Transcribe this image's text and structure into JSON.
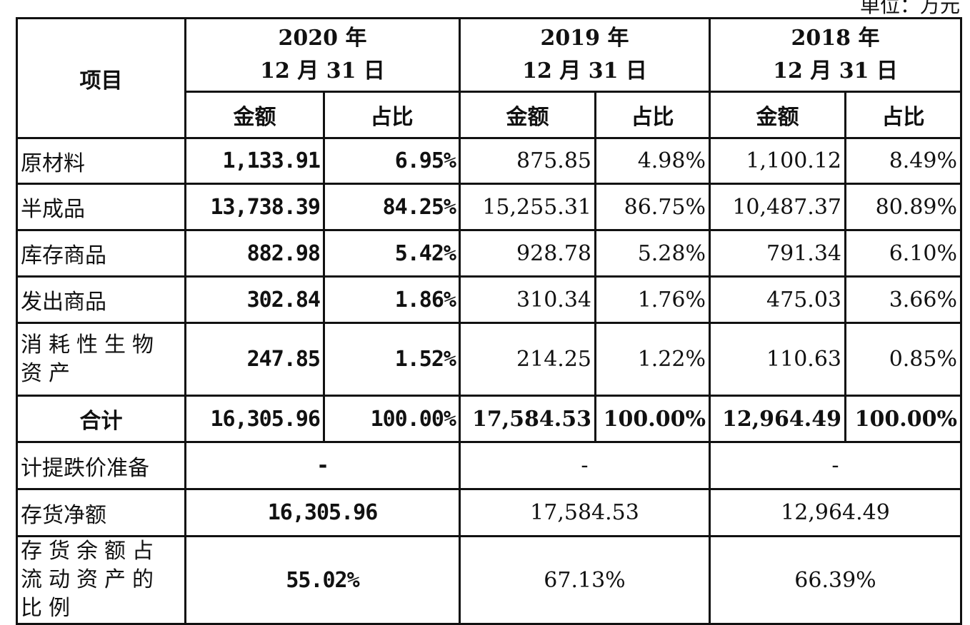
{
  "unit_label": "单位：万元",
  "header": {
    "item": "项目",
    "years": [
      {
        "line1": "2020 年",
        "line2": "12 月 31 日"
      },
      {
        "line1": "2019 年",
        "line2": "12 月 31 日"
      },
      {
        "line1": "2018 年",
        "line2": "12 月 31 日"
      }
    ],
    "amount": "金额",
    "ratio": "占比"
  },
  "rows": [
    {
      "label": "原材料",
      "v": [
        "1,133.91",
        "6.95%",
        "875.85",
        "4.98%",
        "1,100.12",
        "8.49%"
      ]
    },
    {
      "label": "半成品",
      "v": [
        "13,738.39",
        "84.25%",
        "15,255.31",
        "86.75%",
        "10,487.37",
        "80.89%"
      ]
    },
    {
      "label": "库存商品",
      "v": [
        "882.98",
        "5.42%",
        "928.78",
        "5.28%",
        "791.34",
        "6.10%"
      ]
    },
    {
      "label": "发出商品",
      "v": [
        "302.84",
        "1.86%",
        "310.34",
        "1.76%",
        "475.03",
        "3.66%"
      ]
    },
    {
      "label": "消耗性生物资产",
      "v": [
        "247.85",
        "1.52%",
        "214.25",
        "1.22%",
        "110.63",
        "0.85%"
      ]
    }
  ],
  "total": {
    "label": "合计",
    "v": [
      "16,305.96",
      "100.00%",
      "17,584.53",
      "100.00%",
      "12,964.49",
      "100.00%"
    ]
  },
  "provision": {
    "label": "计提跌价准备",
    "v": [
      "-",
      "-",
      "-"
    ]
  },
  "net": {
    "label": "存货净额",
    "v": [
      "16,305.96",
      "17,584.53",
      "12,964.49"
    ]
  },
  "share": {
    "label": "存货余额占流动资产的比例",
    "v": [
      "55.02%",
      "67.13%",
      "66.39%"
    ]
  }
}
